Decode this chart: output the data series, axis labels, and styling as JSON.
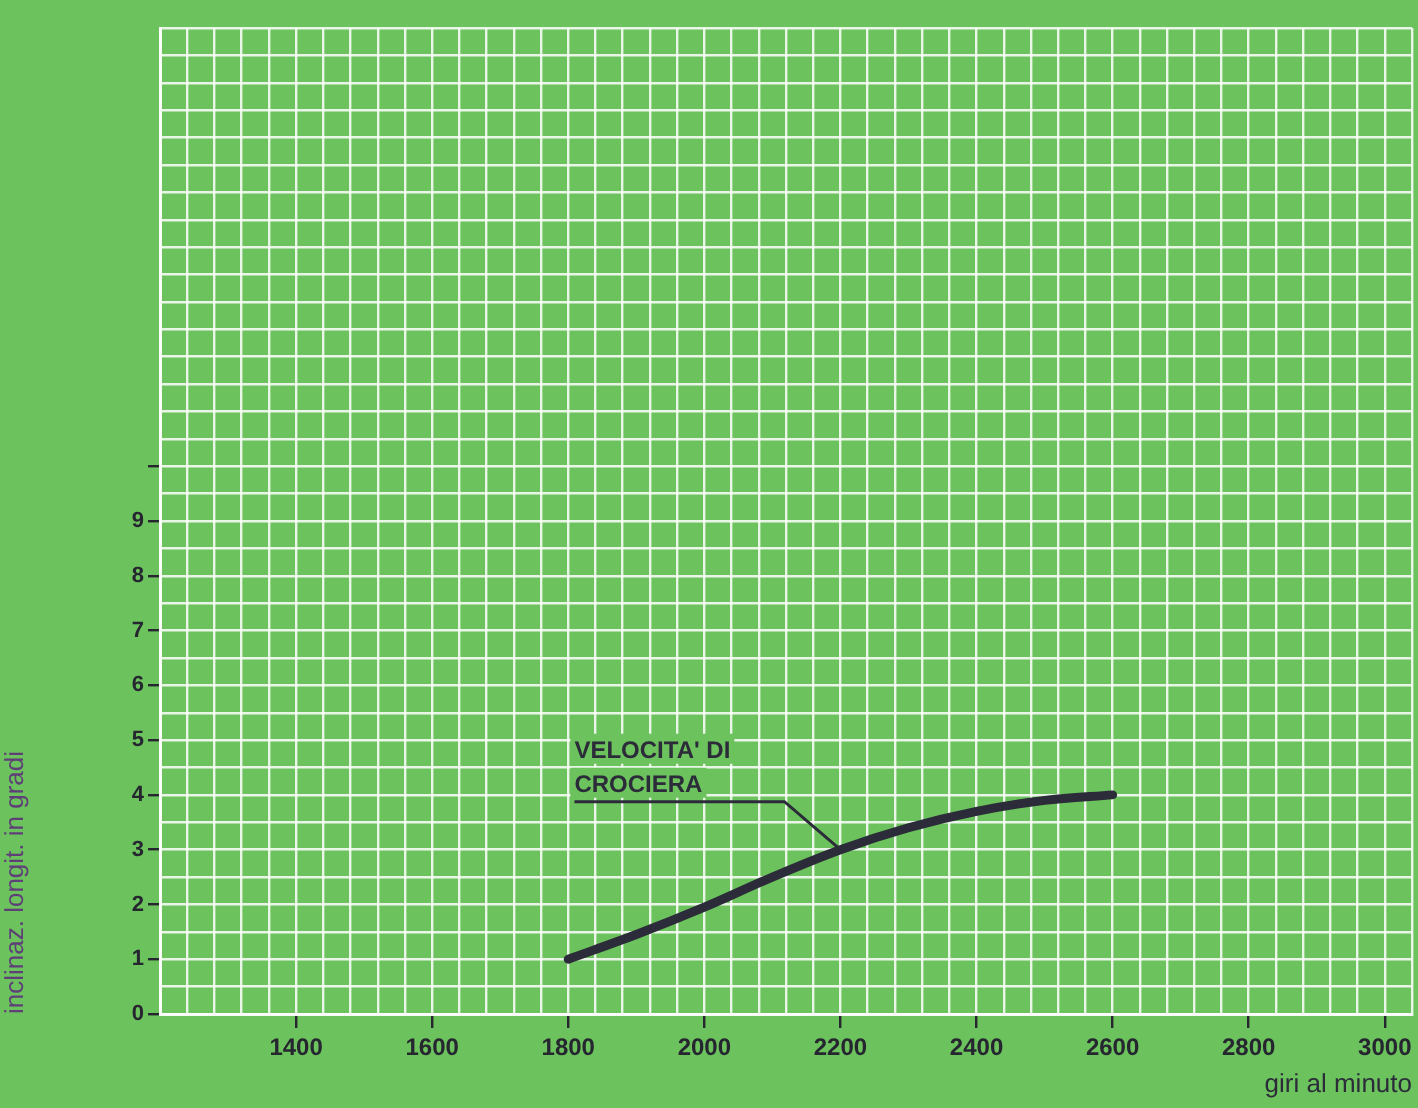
{
  "chart_data": {
    "type": "line",
    "xlabel": "giri al minuto",
    "ylabel": "inclinaz. longit. in gradi",
    "x": [
      1800,
      1900,
      2000,
      2100,
      2200,
      2300,
      2400,
      2500,
      2600
    ],
    "series": [
      {
        "color": "#2b2b3a",
        "values": [
          1.0,
          1.45,
          1.95,
          2.5,
          3.0,
          3.4,
          3.7,
          3.9,
          4.0
        ]
      }
    ],
    "xlim": [
      1200,
      3040
    ],
    "xticks": [
      {
        "value": 1200,
        "label": null
      },
      {
        "value": 1240,
        "label": null
      },
      {
        "value": 1280,
        "label": null
      },
      {
        "value": 1320,
        "label": null
      },
      {
        "value": 1360,
        "label": null
      },
      1400,
      {
        "value": 1440,
        "label": null
      },
      {
        "value": 1480,
        "label": null
      },
      {
        "value": 1520,
        "label": null
      },
      {
        "value": 1560,
        "label": null
      },
      1600,
      {
        "value": 1640,
        "label": null
      },
      {
        "value": 1680,
        "label": null
      },
      {
        "value": 1720,
        "label": null
      },
      {
        "value": 1760,
        "label": null
      },
      1800,
      {
        "value": 1840,
        "label": null
      },
      {
        "value": 1880,
        "label": null
      },
      {
        "value": 1920,
        "label": null
      },
      {
        "value": 1960,
        "label": null
      },
      2000,
      {
        "value": 2040,
        "label": null
      },
      {
        "value": 2080,
        "label": null
      },
      {
        "value": 2120,
        "label": null
      },
      {
        "value": 2160,
        "label": null
      },
      2200,
      {
        "value": 2240,
        "label": null
      },
      {
        "value": 2280,
        "label": null
      },
      {
        "value": 2320,
        "label": null
      },
      {
        "value": 2360,
        "label": null
      },
      2400,
      {
        "value": 2440,
        "label": null
      },
      {
        "value": 2480,
        "label": null
      },
      {
        "value": 2520,
        "label": null
      },
      {
        "value": 2560,
        "label": null
      },
      2600,
      {
        "value": 2640,
        "label": null
      },
      {
        "value": 2680,
        "label": null
      },
      {
        "value": 2720,
        "label": null
      },
      {
        "value": 2760,
        "label": null
      },
      2800,
      {
        "value": 2840,
        "label": null
      },
      {
        "value": 2880,
        "label": null
      },
      {
        "value": 2920,
        "label": null
      },
      {
        "value": 2960,
        "label": null
      },
      3000,
      {
        "value": 3040,
        "label": null
      }
    ],
    "ylim": [
      0,
      18
    ],
    "yticks": [
      0,
      {
        "value": 0.5,
        "label": null
      },
      1,
      {
        "value": 1.5,
        "label": null
      },
      2,
      {
        "value": 2.5,
        "label": null
      },
      3,
      {
        "value": 3.5,
        "label": null
      },
      4,
      {
        "value": 4.5,
        "label": null
      },
      5,
      {
        "value": 5.5,
        "label": null
      },
      6,
      {
        "value": 6.5,
        "label": null
      },
      7,
      {
        "value": 7.5,
        "label": null
      },
      8,
      {
        "value": 8.5,
        "label": null
      },
      9,
      {
        "value": 9.5,
        "label": null
      },
      {
        "value": 10,
        "label": null
      },
      {
        "value": 10.5,
        "label": null
      },
      {
        "value": 11,
        "label": null
      },
      {
        "value": 11.5,
        "label": null
      },
      {
        "value": 12,
        "label": null
      },
      {
        "value": 12.5,
        "label": null
      },
      {
        "value": 13,
        "label": null
      },
      {
        "value": 13.5,
        "label": null
      },
      {
        "value": 14,
        "label": null
      },
      {
        "value": 14.5,
        "label": null
      },
      {
        "value": 15,
        "label": null
      },
      {
        "value": 15.5,
        "label": null
      },
      {
        "value": 16,
        "label": null
      },
      {
        "value": 16.5,
        "label": null
      },
      {
        "value": 17,
        "label": null
      },
      {
        "value": 17.5,
        "label": null
      },
      {
        "value": 18,
        "label": null
      }
    ],
    "grid": true,
    "marker": "none",
    "line_style": "solid",
    "legend": false,
    "annotations": [
      {
        "text": "VELOCITA' DI CROCIERA",
        "x": 2200,
        "y": 3.0
      }
    ]
  }
}
